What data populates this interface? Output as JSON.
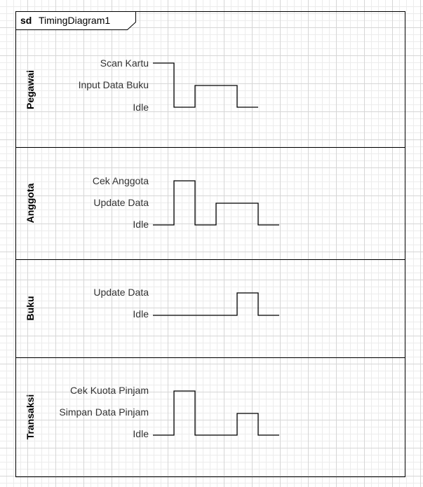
{
  "frame": {
    "keyword": "sd",
    "name": "TimingDiagram1"
  },
  "lanes": [
    {
      "title": "Pegawai",
      "states": [
        "Scan Kartu",
        "Input Data Buku",
        "Idle"
      ],
      "sequence": [
        {
          "state": 0,
          "until": 1
        },
        {
          "state": 2,
          "until": 2
        },
        {
          "state": 1,
          "until": 4
        },
        {
          "state": 2,
          "until": 5
        }
      ]
    },
    {
      "title": "Anggota",
      "states": [
        "Cek Anggota",
        "Update Data",
        "Idle"
      ],
      "sequence": [
        {
          "state": 2,
          "until": 1
        },
        {
          "state": 0,
          "until": 2
        },
        {
          "state": 2,
          "until": 3
        },
        {
          "state": 1,
          "until": 5
        },
        {
          "state": 2,
          "until": 6
        }
      ]
    },
    {
      "title": "Buku",
      "states": [
        "Update Data",
        "Idle"
      ],
      "sequence": [
        {
          "state": 1,
          "until": 4
        },
        {
          "state": 0,
          "until": 5
        },
        {
          "state": 1,
          "until": 6
        }
      ]
    },
    {
      "title": "Transaksi",
      "states": [
        "Cek Kuota Pinjam",
        "Simpan Data Pinjam",
        "Idle"
      ],
      "sequence": [
        {
          "state": 2,
          "until": 1
        },
        {
          "state": 0,
          "until": 2
        },
        {
          "state": 2,
          "until": 4
        },
        {
          "state": 1,
          "until": 5
        },
        {
          "state": 2,
          "until": 6
        }
      ]
    }
  ]
}
